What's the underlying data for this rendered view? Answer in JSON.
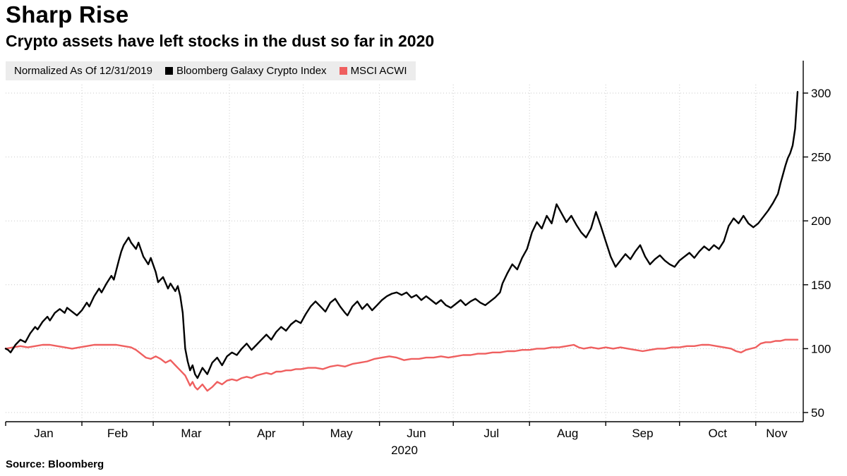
{
  "header": {
    "title": "Sharp Rise",
    "subtitle": "Crypto assets have left stocks in the dust so far in 2020"
  },
  "legend": {
    "note": "Normalized As Of 12/31/2019",
    "items": [
      {
        "label": "Bloomberg Galaxy Crypto Index",
        "color": "#000000"
      },
      {
        "label": "MSCI ACWI",
        "color": "#ef5f5f"
      }
    ]
  },
  "footer": {
    "source": "Source:  Bloomberg"
  },
  "chart_data": {
    "type": "line",
    "title": "Sharp Rise",
    "subtitle": "Crypto assets have left stocks in the dust so far in 2020",
    "normalization_note": "Normalized As Of 12/31/2019",
    "x_unit": "days since 2019-12-31",
    "xlim": [
      0,
      322
    ],
    "ylim": [
      42,
      307
    ],
    "y_ticks": [
      50,
      100,
      150,
      200,
      250,
      300
    ],
    "y_axis_side": "right",
    "grid": "dotted",
    "year_label": "2020",
    "months": [
      {
        "label": "Jan",
        "start": 0,
        "end": 31
      },
      {
        "label": "Feb",
        "start": 31,
        "end": 60
      },
      {
        "label": "Mar",
        "start": 60,
        "end": 91
      },
      {
        "label": "Apr",
        "start": 91,
        "end": 121
      },
      {
        "label": "May",
        "start": 121,
        "end": 152
      },
      {
        "label": "Jun",
        "start": 152,
        "end": 182
      },
      {
        "label": "Jul",
        "start": 182,
        "end": 213
      },
      {
        "label": "Aug",
        "start": 213,
        "end": 244
      },
      {
        "label": "Sep",
        "start": 244,
        "end": 274
      },
      {
        "label": "Oct",
        "start": 274,
        "end": 305
      },
      {
        "label": "Nov",
        "start": 305,
        "end": 322
      }
    ],
    "series": [
      {
        "name": "Bloomberg Galaxy Crypto Index",
        "id": "crypto-index-line",
        "color": "#000000",
        "points": [
          [
            0,
            100
          ],
          [
            1,
            99
          ],
          [
            2,
            97
          ],
          [
            4,
            103
          ],
          [
            6,
            107
          ],
          [
            8,
            105
          ],
          [
            10,
            112
          ],
          [
            12,
            117
          ],
          [
            13,
            115
          ],
          [
            15,
            121
          ],
          [
            17,
            125
          ],
          [
            18,
            122
          ],
          [
            20,
            128
          ],
          [
            22,
            131
          ],
          [
            24,
            128
          ],
          [
            25,
            132
          ],
          [
            27,
            129
          ],
          [
            29,
            126
          ],
          [
            31,
            130
          ],
          [
            33,
            136
          ],
          [
            34,
            133
          ],
          [
            36,
            141
          ],
          [
            38,
            147
          ],
          [
            39,
            144
          ],
          [
            41,
            151
          ],
          [
            43,
            157
          ],
          [
            44,
            154
          ],
          [
            46,
            169
          ],
          [
            47,
            176
          ],
          [
            48,
            181
          ],
          [
            50,
            187
          ],
          [
            51,
            183
          ],
          [
            53,
            178
          ],
          [
            54,
            183
          ],
          [
            56,
            172
          ],
          [
            58,
            166
          ],
          [
            59,
            171
          ],
          [
            61,
            160
          ],
          [
            62,
            152
          ],
          [
            64,
            156
          ],
          [
            66,
            147
          ],
          [
            67,
            151
          ],
          [
            69,
            145
          ],
          [
            70,
            149
          ],
          [
            71,
            141
          ],
          [
            72,
            128
          ],
          [
            73,
            100
          ],
          [
            74,
            90
          ],
          [
            75,
            83
          ],
          [
            76,
            87
          ],
          [
            77,
            80
          ],
          [
            78,
            77
          ],
          [
            80,
            85
          ],
          [
            82,
            80
          ],
          [
            84,
            89
          ],
          [
            86,
            93
          ],
          [
            88,
            87
          ],
          [
            90,
            94
          ],
          [
            92,
            97
          ],
          [
            94,
            95
          ],
          [
            96,
            100
          ],
          [
            98,
            104
          ],
          [
            100,
            99
          ],
          [
            102,
            103
          ],
          [
            104,
            107
          ],
          [
            106,
            111
          ],
          [
            108,
            107
          ],
          [
            110,
            113
          ],
          [
            112,
            117
          ],
          [
            114,
            114
          ],
          [
            116,
            119
          ],
          [
            118,
            122
          ],
          [
            120,
            120
          ],
          [
            122,
            127
          ],
          [
            124,
            133
          ],
          [
            126,
            137
          ],
          [
            128,
            133
          ],
          [
            130,
            129
          ],
          [
            132,
            136
          ],
          [
            134,
            139
          ],
          [
            136,
            133
          ],
          [
            138,
            128
          ],
          [
            139,
            126
          ],
          [
            141,
            133
          ],
          [
            143,
            137
          ],
          [
            145,
            131
          ],
          [
            147,
            135
          ],
          [
            149,
            130
          ],
          [
            151,
            134
          ],
          [
            153,
            138
          ],
          [
            155,
            141
          ],
          [
            157,
            143
          ],
          [
            159,
            144
          ],
          [
            161,
            142
          ],
          [
            163,
            144
          ],
          [
            165,
            140
          ],
          [
            167,
            142
          ],
          [
            169,
            138
          ],
          [
            171,
            141
          ],
          [
            173,
            138
          ],
          [
            175,
            135
          ],
          [
            177,
            138
          ],
          [
            179,
            134
          ],
          [
            181,
            132
          ],
          [
            183,
            135
          ],
          [
            185,
            138
          ],
          [
            187,
            134
          ],
          [
            189,
            137
          ],
          [
            191,
            139
          ],
          [
            193,
            136
          ],
          [
            195,
            134
          ],
          [
            197,
            137
          ],
          [
            199,
            140
          ],
          [
            201,
            144
          ],
          [
            202,
            151
          ],
          [
            204,
            159
          ],
          [
            206,
            166
          ],
          [
            208,
            162
          ],
          [
            210,
            171
          ],
          [
            212,
            178
          ],
          [
            214,
            191
          ],
          [
            216,
            199
          ],
          [
            218,
            194
          ],
          [
            220,
            204
          ],
          [
            222,
            198
          ],
          [
            224,
            213
          ],
          [
            226,
            206
          ],
          [
            228,
            199
          ],
          [
            230,
            204
          ],
          [
            232,
            197
          ],
          [
            234,
            191
          ],
          [
            236,
            187
          ],
          [
            238,
            194
          ],
          [
            240,
            207
          ],
          [
            242,
            196
          ],
          [
            244,
            184
          ],
          [
            246,
            172
          ],
          [
            248,
            164
          ],
          [
            250,
            169
          ],
          [
            252,
            174
          ],
          [
            254,
            170
          ],
          [
            256,
            176
          ],
          [
            258,
            181
          ],
          [
            260,
            172
          ],
          [
            262,
            166
          ],
          [
            264,
            170
          ],
          [
            266,
            173
          ],
          [
            268,
            169
          ],
          [
            270,
            166
          ],
          [
            272,
            164
          ],
          [
            274,
            169
          ],
          [
            276,
            172
          ],
          [
            278,
            175
          ],
          [
            280,
            171
          ],
          [
            282,
            176
          ],
          [
            284,
            180
          ],
          [
            286,
            177
          ],
          [
            288,
            181
          ],
          [
            290,
            178
          ],
          [
            292,
            184
          ],
          [
            294,
            196
          ],
          [
            296,
            202
          ],
          [
            298,
            198
          ],
          [
            300,
            204
          ],
          [
            302,
            198
          ],
          [
            304,
            195
          ],
          [
            306,
            198
          ],
          [
            308,
            203
          ],
          [
            310,
            208
          ],
          [
            312,
            214
          ],
          [
            314,
            221
          ],
          [
            315,
            229
          ],
          [
            316,
            236
          ],
          [
            317,
            243
          ],
          [
            318,
            249
          ],
          [
            319,
            253
          ],
          [
            320,
            259
          ],
          [
            321,
            272
          ],
          [
            322,
            301
          ]
        ]
      },
      {
        "name": "MSCI ACWI",
        "id": "msci-acwi-line",
        "color": "#ef5f5f",
        "points": [
          [
            0,
            100
          ],
          [
            3,
            101
          ],
          [
            6,
            102
          ],
          [
            9,
            101
          ],
          [
            12,
            102
          ],
          [
            15,
            103
          ],
          [
            18,
            103
          ],
          [
            21,
            102
          ],
          [
            24,
            101
          ],
          [
            27,
            100
          ],
          [
            30,
            101
          ],
          [
            33,
            102
          ],
          [
            36,
            103
          ],
          [
            39,
            103
          ],
          [
            42,
            103
          ],
          [
            45,
            103
          ],
          [
            48,
            102
          ],
          [
            51,
            101
          ],
          [
            53,
            99
          ],
          [
            55,
            96
          ],
          [
            57,
            93
          ],
          [
            59,
            92
          ],
          [
            61,
            94
          ],
          [
            63,
            92
          ],
          [
            65,
            89
          ],
          [
            67,
            91
          ],
          [
            69,
            87
          ],
          [
            71,
            83
          ],
          [
            73,
            79
          ],
          [
            74,
            75
          ],
          [
            75,
            71
          ],
          [
            76,
            74
          ],
          [
            77,
            70
          ],
          [
            78,
            68
          ],
          [
            80,
            72
          ],
          [
            82,
            67
          ],
          [
            84,
            70
          ],
          [
            86,
            74
          ],
          [
            88,
            72
          ],
          [
            90,
            75
          ],
          [
            92,
            76
          ],
          [
            94,
            75
          ],
          [
            96,
            77
          ],
          [
            98,
            78
          ],
          [
            100,
            77
          ],
          [
            102,
            79
          ],
          [
            104,
            80
          ],
          [
            106,
            81
          ],
          [
            108,
            80
          ],
          [
            110,
            82
          ],
          [
            112,
            82
          ],
          [
            114,
            83
          ],
          [
            116,
            83
          ],
          [
            118,
            84
          ],
          [
            120,
            84
          ],
          [
            123,
            85
          ],
          [
            126,
            85
          ],
          [
            129,
            84
          ],
          [
            132,
            86
          ],
          [
            135,
            87
          ],
          [
            138,
            86
          ],
          [
            141,
            88
          ],
          [
            144,
            89
          ],
          [
            147,
            90
          ],
          [
            150,
            92
          ],
          [
            153,
            93
          ],
          [
            156,
            94
          ],
          [
            159,
            93
          ],
          [
            162,
            91
          ],
          [
            165,
            92
          ],
          [
            168,
            92
          ],
          [
            171,
            93
          ],
          [
            174,
            93
          ],
          [
            177,
            94
          ],
          [
            180,
            93
          ],
          [
            183,
            94
          ],
          [
            186,
            95
          ],
          [
            189,
            95
          ],
          [
            192,
            96
          ],
          [
            195,
            96
          ],
          [
            198,
            97
          ],
          [
            201,
            97
          ],
          [
            204,
            98
          ],
          [
            207,
            98
          ],
          [
            210,
            99
          ],
          [
            213,
            99
          ],
          [
            216,
            100
          ],
          [
            219,
            100
          ],
          [
            222,
            101
          ],
          [
            225,
            101
          ],
          [
            228,
            102
          ],
          [
            231,
            103
          ],
          [
            233,
            101
          ],
          [
            235,
            100
          ],
          [
            238,
            101
          ],
          [
            241,
            100
          ],
          [
            244,
            101
          ],
          [
            247,
            100
          ],
          [
            250,
            101
          ],
          [
            253,
            100
          ],
          [
            256,
            99
          ],
          [
            259,
            98
          ],
          [
            262,
            99
          ],
          [
            265,
            100
          ],
          [
            268,
            100
          ],
          [
            271,
            101
          ],
          [
            274,
            101
          ],
          [
            277,
            102
          ],
          [
            280,
            102
          ],
          [
            283,
            103
          ],
          [
            286,
            103
          ],
          [
            289,
            102
          ],
          [
            292,
            101
          ],
          [
            295,
            100
          ],
          [
            297,
            98
          ],
          [
            299,
            97
          ],
          [
            301,
            99
          ],
          [
            303,
            100
          ],
          [
            305,
            101
          ],
          [
            307,
            104
          ],
          [
            309,
            105
          ],
          [
            311,
            105
          ],
          [
            313,
            106
          ],
          [
            315,
            106
          ],
          [
            317,
            107
          ],
          [
            319,
            107
          ],
          [
            321,
            107
          ],
          [
            322,
            107
          ]
        ]
      }
    ]
  }
}
